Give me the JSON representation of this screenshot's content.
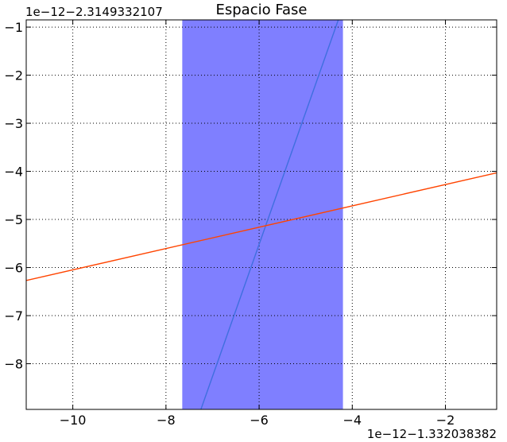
{
  "chart_data": {
    "type": "line",
    "title": "Espacio Fase",
    "xlabel": "",
    "ylabel": "",
    "x_offset_text": "1e−12−1.332038382",
    "y_offset_text": "1e−12−2.3149332107",
    "xlim": [
      -11.0,
      -0.9
    ],
    "ylim": [
      -8.95,
      -0.85
    ],
    "xticks": [
      -10,
      -8,
      -6,
      -4,
      -2
    ],
    "yticks": [
      -8,
      -7,
      -6,
      -5,
      -4,
      -3,
      -2,
      -1
    ],
    "xtick_labels": [
      "−10",
      "−8",
      "−6",
      "−4",
      "−2"
    ],
    "ytick_labels": [
      "−8",
      "−7",
      "−6",
      "−5",
      "−4",
      "−3",
      "−2",
      "−1"
    ],
    "grid": true,
    "shaded_region": {
      "x": [
        -7.65,
        -4.2
      ],
      "color": "#7f7fff"
    },
    "series": [
      {
        "color": "#3f6fdf",
        "x": [
          -7.25,
          -4.3
        ],
        "y": [
          -8.95,
          -0.85
        ]
      },
      {
        "color": "#ff4400",
        "x": [
          -11.0,
          -0.9
        ],
        "y": [
          -6.27,
          -4.03
        ]
      }
    ]
  }
}
